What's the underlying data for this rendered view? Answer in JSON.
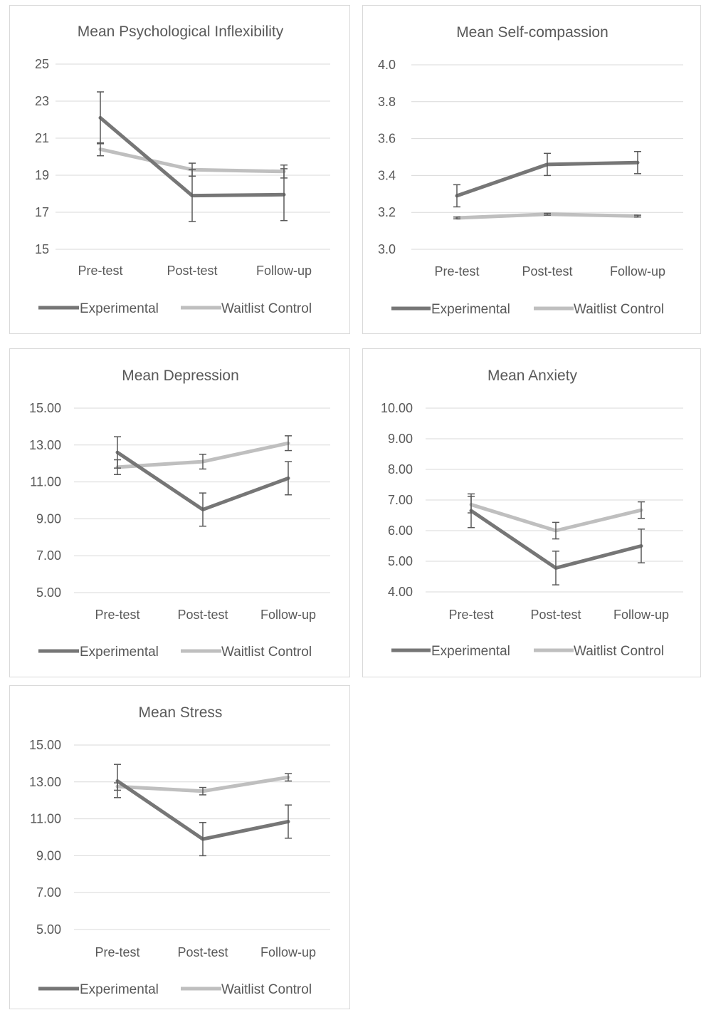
{
  "chart_data": [
    {
      "type": "line",
      "title": "Mean Psychological Inflexibility",
      "categories": [
        "Pre-test",
        "Post-test",
        "Follow-up"
      ],
      "ylim": [
        15,
        25
      ],
      "yticks": [
        "15",
        "17",
        "19",
        "21",
        "23",
        "25"
      ],
      "series": [
        {
          "name": "Experimental",
          "color": "#767676",
          "values": [
            22.1,
            17.9,
            17.95
          ],
          "error": [
            1.4,
            1.4,
            1.4
          ]
        },
        {
          "name": "Waitlist Control",
          "color": "#bfbfbf",
          "values": [
            20.4,
            19.3,
            19.2
          ],
          "error": [
            0.35,
            0.35,
            0.35
          ]
        }
      ],
      "grid": true,
      "legend": "bottom"
    },
    {
      "type": "line",
      "title": "Mean Self-compassion",
      "categories": [
        "Pre-test",
        "Post-test",
        "Follow-up"
      ],
      "ylim": [
        3.0,
        4.0
      ],
      "yticks": [
        "3.0",
        "3.2",
        "3.4",
        "3.6",
        "3.8",
        "4.0"
      ],
      "series": [
        {
          "name": "Experimental",
          "color": "#767676",
          "values": [
            3.29,
            3.46,
            3.47
          ],
          "error": [
            0.06,
            0.06,
            0.06
          ]
        },
        {
          "name": "Waitlist Control",
          "color": "#bfbfbf",
          "values": [
            3.17,
            3.19,
            3.18
          ],
          "error": [
            0.005,
            0.005,
            0.005
          ]
        }
      ],
      "grid": true,
      "legend": "bottom"
    },
    {
      "type": "line",
      "title": "Mean Depression",
      "categories": [
        "Pre-test",
        "Post-test",
        "Follow-up"
      ],
      "ylim": [
        5,
        15
      ],
      "yticks": [
        "5.00",
        "7.00",
        "9.00",
        "11.00",
        "13.00",
        "15.00"
      ],
      "series": [
        {
          "name": "Experimental",
          "color": "#767676",
          "values": [
            12.6,
            9.5,
            11.2
          ],
          "error": [
            0.85,
            0.9,
            0.9
          ]
        },
        {
          "name": "Waitlist Control",
          "color": "#bfbfbf",
          "values": [
            11.8,
            12.1,
            13.1
          ],
          "error": [
            0.4,
            0.4,
            0.4
          ]
        }
      ],
      "grid": true,
      "legend": "bottom"
    },
    {
      "type": "line",
      "title": "Mean Anxiety",
      "categories": [
        "Pre-test",
        "Post-test",
        "Follow-up"
      ],
      "ylim": [
        4,
        10
      ],
      "yticks": [
        "4.00",
        "5.00",
        "6.00",
        "7.00",
        "8.00",
        "9.00",
        "10.00"
      ],
      "series": [
        {
          "name": "Experimental",
          "color": "#767676",
          "values": [
            6.65,
            4.78,
            5.5
          ],
          "error": [
            0.55,
            0.55,
            0.55
          ]
        },
        {
          "name": "Waitlist Control",
          "color": "#bfbfbf",
          "values": [
            6.85,
            6.0,
            6.67
          ],
          "error": [
            0.27,
            0.27,
            0.27
          ]
        }
      ],
      "grid": true,
      "legend": "bottom"
    },
    {
      "type": "line",
      "title": "Mean Stress",
      "categories": [
        "Pre-test",
        "Post-test",
        "Follow-up"
      ],
      "ylim": [
        5,
        15
      ],
      "yticks": [
        "5.00",
        "7.00",
        "9.00",
        "11.00",
        "13.00",
        "15.00"
      ],
      "series": [
        {
          "name": "Experimental",
          "color": "#767676",
          "values": [
            13.05,
            9.9,
            10.85
          ],
          "error": [
            0.9,
            0.9,
            0.9
          ]
        },
        {
          "name": "Waitlist Control",
          "color": "#bfbfbf",
          "values": [
            12.75,
            12.5,
            13.25
          ],
          "error": [
            0.2,
            0.2,
            0.2
          ]
        }
      ],
      "grid": true,
      "legend": "bottom"
    }
  ]
}
